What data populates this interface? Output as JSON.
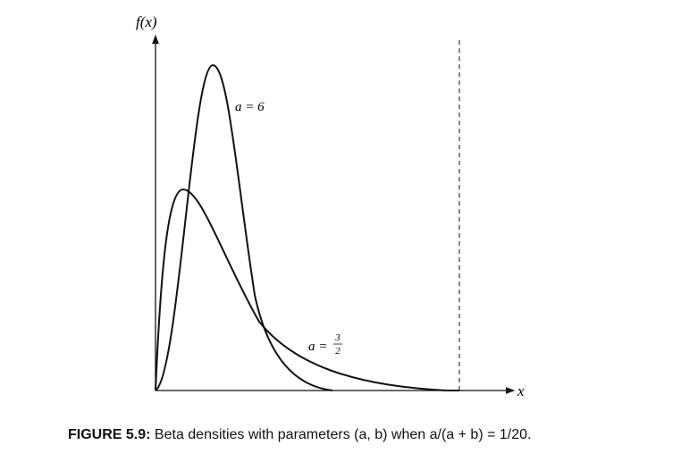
{
  "figure": {
    "y_axis_label": "f(x)",
    "x_axis_label": "x",
    "curves": [
      {
        "label": "a = 6"
      },
      {
        "prefix": "a =",
        "numerator": "3",
        "denominator": "2"
      }
    ],
    "caption": {
      "label": "FIGURE 5.9:",
      "text": "Beta densities with parameters (a, b) when a/(a + b) = 1/20."
    }
  }
}
